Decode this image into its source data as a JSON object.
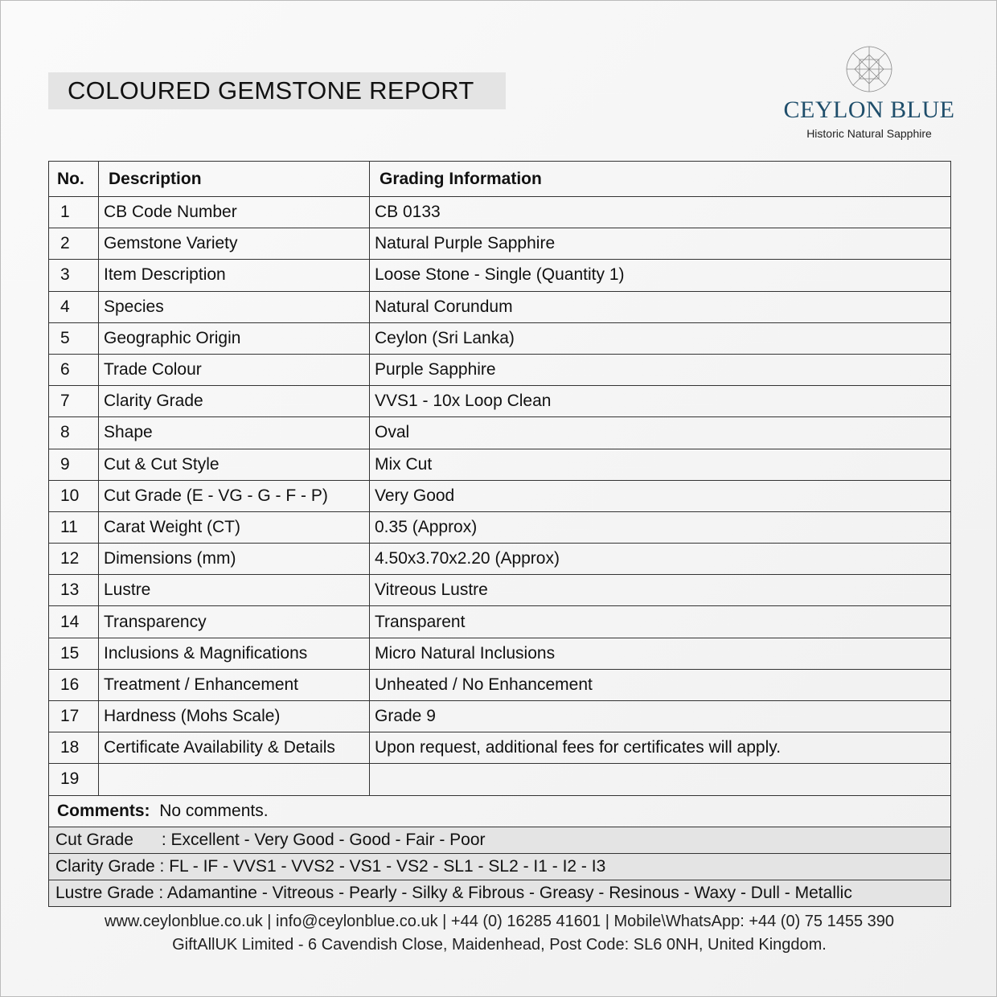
{
  "title": "COLOURED GEMSTONE REPORT",
  "logo": {
    "brand": "CEYLON BLUE",
    "tagline": "Historic Natural Sapphire",
    "color": "#1f4e6b"
  },
  "table": {
    "headers": [
      "No.",
      "Description",
      "Grading Information"
    ],
    "rows": [
      [
        "1",
        "CB Code Number",
        "CB 0133"
      ],
      [
        "2",
        "Gemstone Variety",
        "Natural Purple Sapphire"
      ],
      [
        "3",
        "Item Description",
        "Loose Stone - Single (Quantity 1)"
      ],
      [
        "4",
        "Species",
        "Natural Corundum"
      ],
      [
        "5",
        "Geographic Origin",
        "Ceylon (Sri Lanka)"
      ],
      [
        "6",
        "Trade Colour",
        "Purple Sapphire"
      ],
      [
        "7",
        "Clarity Grade",
        "VVS1 - 10x Loop Clean"
      ],
      [
        "8",
        "Shape",
        "Oval"
      ],
      [
        "9",
        "Cut & Cut Style",
        "Mix Cut"
      ],
      [
        "10",
        "Cut Grade (E - VG - G - F - P)",
        "Very Good"
      ],
      [
        "11",
        "Carat Weight (CT)",
        "0.35 (Approx)"
      ],
      [
        "12",
        "Dimensions (mm)",
        "4.50x3.70x2.20 (Approx)"
      ],
      [
        "13",
        "Lustre",
        "Vitreous Lustre"
      ],
      [
        "14",
        "Transparency",
        "Transparent"
      ],
      [
        "15",
        "Inclusions & Magnifications",
        "Micro Natural Inclusions"
      ],
      [
        "16",
        "Treatment / Enhancement",
        "Unheated / No Enhancement"
      ],
      [
        "17",
        "Hardness (Mohs Scale)",
        "Grade 9"
      ],
      [
        "18",
        "Certificate Availability & Details",
        "Upon request, additional fees for certificates will apply."
      ],
      [
        "19",
        "",
        ""
      ]
    ],
    "comments_label": "Comments:",
    "comments": "No comments.",
    "grades": [
      "Cut Grade      : Excellent - Very Good - Good - Fair - Poor",
      "Clarity Grade : FL - IF - VVS1 - VVS2 - VS1 - VS2 - SL1 - SL2 - I1 - I2 - I3",
      "Lustre Grade : Adamantine - Vitreous - Pearly - Silky & Fibrous - Greasy - Resinous - Waxy - Dull - Metallic"
    ]
  },
  "footer": {
    "line1": "www.ceylonblue.co.uk | info@ceylonblue.co.uk | +44 (0) 16285 41601 | Mobile\\WhatsApp: +44 (0) 75 1455 390",
    "line2": "GiftAllUK Limited - 6 Cavendish Close, Maidenhead, Post Code: SL6 0NH, United Kingdom."
  }
}
